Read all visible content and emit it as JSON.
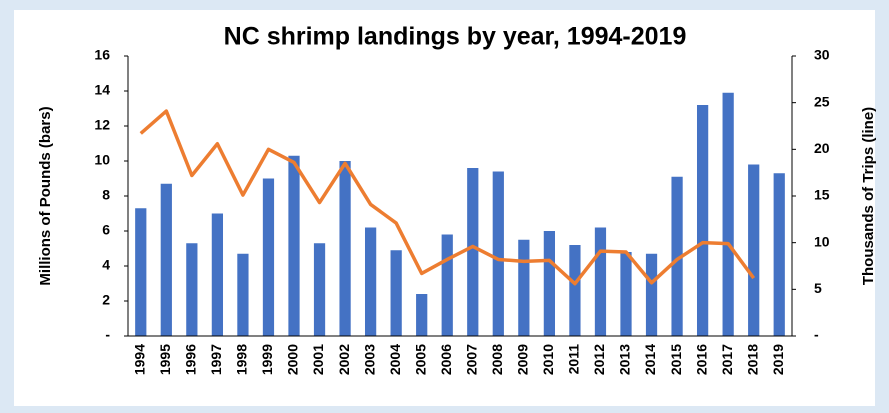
{
  "chart_data": {
    "type": "bar-line",
    "title": "NC shrimp landings by year, 1994-2019",
    "y_label": "Millions of Pounds (bars)",
    "y2_label": "Thousands of Trips (line)",
    "categories": [
      "1994",
      "1995",
      "1996",
      "1997",
      "1998",
      "1999",
      "2000",
      "2001",
      "2002",
      "2003",
      "2004",
      "2005",
      "2006",
      "2007",
      "2008",
      "2009",
      "2010",
      "2011",
      "2012",
      "2013",
      "2014",
      "2015",
      "2016",
      "2017",
      "2018",
      "2019"
    ],
    "series": [
      {
        "name": "Millions of Pounds",
        "type": "bar",
        "color": "#4472c4",
        "axis": "y",
        "values": [
          7.3,
          8.7,
          5.3,
          7.0,
          4.7,
          9.0,
          10.3,
          5.3,
          10.0,
          6.2,
          4.9,
          2.4,
          5.8,
          9.6,
          9.4,
          5.5,
          6.0,
          5.2,
          6.2,
          4.8,
          4.7,
          9.1,
          13.2,
          13.9,
          9.8,
          9.3
        ]
      },
      {
        "name": "Thousands of Trips",
        "type": "line",
        "color": "#ed7d31",
        "axis": "y2",
        "values": [
          21.7,
          24.1,
          17.2,
          20.6,
          15.1,
          20.0,
          18.6,
          14.3,
          18.5,
          14.1,
          12.1,
          6.7,
          8.2,
          9.6,
          8.2,
          8.0,
          8.1,
          5.6,
          9.1,
          9.0,
          5.7,
          8.2,
          10.0,
          9.9,
          6.2,
          null
        ]
      }
    ],
    "ylim": [
      0,
      16
    ],
    "yticks": [
      {
        "value": 0,
        "label": "-"
      },
      2,
      4,
      6,
      8,
      10,
      12,
      14,
      16
    ],
    "y2lim": [
      0,
      30
    ],
    "y2ticks": [
      {
        "value": 0,
        "label": "-"
      },
      5,
      10,
      15,
      20,
      25,
      30
    ]
  }
}
